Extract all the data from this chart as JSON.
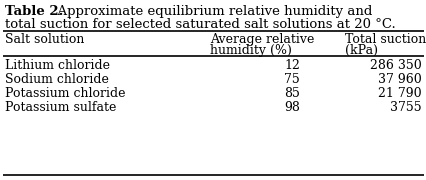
{
  "title_bold": "Table 2.",
  "title_rest": "  Approximate equilibrium relative humidity and",
  "title_line2": "total suction for selected saturated salt solutions at 20 °C.",
  "col_header1": "Salt solution",
  "col_header2a": "Average relative",
  "col_header2b": "humidity (%)",
  "col_header3a": "Total suction",
  "col_header3b": "(kPa)",
  "rows": [
    [
      "Lithium chloride",
      "12",
      "286 350"
    ],
    [
      "Sodium chloride",
      "75",
      "37 960"
    ],
    [
      "Potassium chloride",
      "85",
      "21 790"
    ],
    [
      "Potassium sulfate",
      "98",
      "3755"
    ]
  ],
  "background_color": "#ffffff",
  "font_size": 9.0,
  "title_font_size": 9.5
}
